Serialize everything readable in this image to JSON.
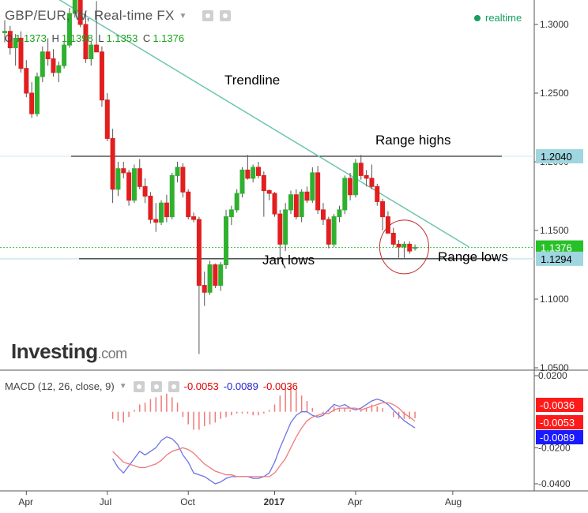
{
  "header": {
    "symbol_title": "GBP/EUR, W, Real-time FX",
    "ohlc": {
      "o_label": "O",
      "o": "1.1373",
      "h_label": "H",
      "h": "1.1398",
      "l_label": "L",
      "l": "1.1353",
      "c_label": "C",
      "c": "1.1376"
    },
    "realtime_label": "realtime"
  },
  "annotations": {
    "trendline": "Trendline",
    "range_highs": "Range highs",
    "jan_lows": "Jan lows",
    "range_lows": "Range lows"
  },
  "logo": {
    "main": "Investing",
    "suffix": ".com"
  },
  "macd_panel": {
    "label": "MACD (12, 26, close, 9)",
    "v1": "-0.0053",
    "v2": "-0.0089",
    "v3": "-0.0036"
  },
  "colors": {
    "up": "#2fb12f",
    "down": "#e21e1e",
    "trendline": "#6fc4b0",
    "macd_line": "#6c74e6",
    "signal_line": "#ef7a7a",
    "histogram": "#ef7a7a"
  },
  "chart_data": [
    {
      "type": "candlestick",
      "title": "GBP/EUR, W, Real-time FX",
      "x_ticks": [
        "Apr",
        "Jul",
        "Oct",
        "2017",
        "Apr",
        "Aug"
      ],
      "y_ticks": [
        "1.3000",
        "1.2500",
        "1.2000",
        "1.1500",
        "1.1000",
        "1.0500"
      ],
      "ylim": [
        1.03,
        1.32
      ],
      "price_labels": [
        {
          "value": 1.204,
          "text": "1.2040"
        },
        {
          "value": 1.1376,
          "text": "1.1376"
        },
        {
          "value": 1.1294,
          "text": "1.1294"
        }
      ],
      "levels": {
        "range_high": 1.204,
        "range_low": 1.1294,
        "current": 1.1376
      },
      "trendline": {
        "start": [
          0,
          1.342
        ],
        "end": [
          86,
          1.138
        ]
      },
      "candles": [
        [
          1.294,
          1.303,
          1.287,
          1.295
        ],
        [
          1.295,
          1.299,
          1.278,
          1.283
        ],
        [
          1.283,
          1.293,
          1.27,
          1.29
        ],
        [
          1.29,
          1.295,
          1.265,
          1.268
        ],
        [
          1.268,
          1.274,
          1.247,
          1.25
        ],
        [
          1.25,
          1.258,
          1.232,
          1.235
        ],
        [
          1.235,
          1.265,
          1.233,
          1.262
        ],
        [
          1.262,
          1.284,
          1.258,
          1.28
        ],
        [
          1.28,
          1.29,
          1.27,
          1.275
        ],
        [
          1.275,
          1.282,
          1.262,
          1.265
        ],
        [
          1.265,
          1.273,
          1.258,
          1.27
        ],
        [
          1.27,
          1.288,
          1.268,
          1.285
        ],
        [
          1.285,
          1.312,
          1.283,
          1.308
        ],
        [
          1.308,
          1.326,
          1.305,
          1.32
        ],
        [
          1.32,
          1.33,
          1.298,
          1.3
        ],
        [
          1.3,
          1.308,
          1.272,
          1.275
        ],
        [
          1.275,
          1.288,
          1.27,
          1.285
        ],
        [
          1.285,
          1.317,
          1.28,
          1.28
        ],
        [
          1.28,
          1.284,
          1.24,
          1.245
        ],
        [
          1.245,
          1.25,
          1.215,
          1.217
        ],
        [
          1.217,
          1.224,
          1.17,
          1.18
        ],
        [
          1.18,
          1.2,
          1.175,
          1.195
        ],
        [
          1.195,
          1.2,
          1.188,
          1.192
        ],
        [
          1.192,
          1.194,
          1.168,
          1.172
        ],
        [
          1.172,
          1.198,
          1.17,
          1.195
        ],
        [
          1.195,
          1.202,
          1.18,
          1.182
        ],
        [
          1.182,
          1.188,
          1.17,
          1.175
        ],
        [
          1.175,
          1.178,
          1.155,
          1.158
        ],
        [
          1.158,
          1.17,
          1.149,
          1.156
        ],
        [
          1.156,
          1.172,
          1.154,
          1.17
        ],
        [
          1.17,
          1.176,
          1.156,
          1.16
        ],
        [
          1.16,
          1.192,
          1.158,
          1.19
        ],
        [
          1.19,
          1.2,
          1.185,
          1.196
        ],
        [
          1.196,
          1.199,
          1.174,
          1.178
        ],
        [
          1.178,
          1.18,
          1.158,
          1.16
        ],
        [
          1.16,
          1.163,
          1.156,
          1.158
        ],
        [
          1.158,
          1.16,
          1.06,
          1.11
        ],
        [
          1.11,
          1.12,
          1.095,
          1.105
        ],
        [
          1.105,
          1.128,
          1.103,
          1.125
        ],
        [
          1.125,
          1.126,
          1.108,
          1.11
        ],
        [
          1.11,
          1.127,
          1.106,
          1.125
        ],
        [
          1.125,
          1.165,
          1.122,
          1.16
        ],
        [
          1.16,
          1.168,
          1.154,
          1.165
        ],
        [
          1.165,
          1.18,
          1.163,
          1.177
        ],
        [
          1.177,
          1.196,
          1.174,
          1.194
        ],
        [
          1.194,
          1.205,
          1.187,
          1.188
        ],
        [
          1.188,
          1.198,
          1.185,
          1.196
        ],
        [
          1.196,
          1.2,
          1.188,
          1.19
        ],
        [
          1.19,
          1.193,
          1.16,
          1.179
        ],
        [
          1.179,
          1.18,
          1.172,
          1.177
        ],
        [
          1.177,
          1.178,
          1.16,
          1.162
        ],
        [
          1.162,
          1.165,
          1.13,
          1.14
        ],
        [
          1.14,
          1.17,
          1.135,
          1.165
        ],
        [
          1.165,
          1.179,
          1.162,
          1.176
        ],
        [
          1.176,
          1.18,
          1.158,
          1.16
        ],
        [
          1.16,
          1.18,
          1.156,
          1.178
        ],
        [
          1.178,
          1.182,
          1.17,
          1.172
        ],
        [
          1.172,
          1.196,
          1.17,
          1.192
        ],
        [
          1.192,
          1.197,
          1.162,
          1.165
        ],
        [
          1.165,
          1.17,
          1.154,
          1.158
        ],
        [
          1.158,
          1.16,
          1.137,
          1.14
        ],
        [
          1.14,
          1.162,
          1.138,
          1.16
        ],
        [
          1.16,
          1.168,
          1.156,
          1.165
        ],
        [
          1.165,
          1.19,
          1.162,
          1.188
        ],
        [
          1.188,
          1.192,
          1.172,
          1.176
        ],
        [
          1.176,
          1.202,
          1.174,
          1.199
        ],
        [
          1.199,
          1.205,
          1.187,
          1.19
        ],
        [
          1.19,
          1.194,
          1.182,
          1.188
        ],
        [
          1.188,
          1.198,
          1.18,
          1.182
        ],
        [
          1.182,
          1.184,
          1.168,
          1.171
        ],
        [
          1.171,
          1.173,
          1.15,
          1.16
        ],
        [
          1.16,
          1.164,
          1.15,
          1.148
        ],
        [
          1.148,
          1.152,
          1.138,
          1.14
        ],
        [
          1.14,
          1.143,
          1.13,
          1.138
        ],
        [
          1.138,
          1.142,
          1.13,
          1.14
        ],
        [
          1.14,
          1.142,
          1.133,
          1.135
        ],
        [
          1.1373,
          1.1398,
          1.1353,
          1.1376
        ]
      ]
    },
    {
      "type": "line",
      "title": "MACD (12, 26, close, 9)",
      "x_ticks": [
        "Apr",
        "Jul",
        "Oct",
        "2017",
        "Apr",
        "Aug"
      ],
      "y_ticks": [
        "0.0200",
        "-0.0200",
        "-0.0400"
      ],
      "ylim": [
        -0.045,
        0.022
      ],
      "value_labels": [
        {
          "value": -0.0036,
          "text": "-0.0036"
        },
        {
          "value": -0.0053,
          "text": "-0.0053"
        },
        {
          "value": -0.0089,
          "text": "-0.0089"
        }
      ],
      "series": [
        {
          "name": "MACD",
          "values": [
            -0.026,
            -0.031,
            -0.034,
            -0.03,
            -0.026,
            -0.022,
            -0.024,
            -0.022,
            -0.02,
            -0.016,
            -0.014,
            -0.015,
            -0.018,
            -0.024,
            -0.028,
            -0.034,
            -0.035,
            -0.036,
            -0.038,
            -0.04,
            -0.039,
            -0.037,
            -0.036,
            -0.036,
            -0.036,
            -0.036,
            -0.037,
            -0.037,
            -0.036,
            -0.034,
            -0.028,
            -0.02,
            -0.013,
            -0.006,
            -0.002,
            0.0,
            0.0,
            -0.002,
            -0.003,
            -0.002,
            0.001,
            0.004,
            0.003,
            0.004,
            0.002,
            0.001,
            0.002,
            0.004,
            0.006,
            0.007,
            0.006,
            0.004,
            0.001,
            -0.002,
            -0.005,
            -0.007,
            -0.009
          ]
        },
        {
          "name": "Signal",
          "values": [
            -0.022,
            -0.025,
            -0.028,
            -0.029,
            -0.03,
            -0.031,
            -0.031,
            -0.03,
            -0.029,
            -0.027,
            -0.024,
            -0.022,
            -0.021,
            -0.02,
            -0.021,
            -0.023,
            -0.026,
            -0.029,
            -0.031,
            -0.033,
            -0.034,
            -0.035,
            -0.035,
            -0.036,
            -0.036,
            -0.036,
            -0.036,
            -0.036,
            -0.036,
            -0.036,
            -0.034,
            -0.03,
            -0.026,
            -0.02,
            -0.014,
            -0.009,
            -0.005,
            -0.003,
            -0.002,
            -0.001,
            -0.001,
            0.001,
            0.002,
            0.002,
            0.002,
            0.002,
            0.001,
            0.002,
            0.003,
            0.004,
            0.005,
            0.005,
            0.004,
            0.002,
            -0.001,
            -0.003,
            -0.0053
          ]
        },
        {
          "name": "Histogram",
          "values": [
            -0.004,
            -0.005,
            -0.006,
            -0.003,
            0.001,
            0.004,
            0.005,
            0.007,
            0.008,
            0.009,
            0.01,
            0.008,
            0.005,
            -0.003,
            -0.007,
            -0.01,
            -0.01,
            -0.008,
            -0.007,
            -0.006,
            -0.004,
            -0.003,
            -0.002,
            -0.001,
            -0.001,
            -0.001,
            -0.002,
            -0.002,
            -0.001,
            0.001,
            0.004,
            0.009,
            0.013,
            0.014,
            0.012,
            0.009,
            0.006,
            0.002,
            0.0,
            -0.001,
            0.001,
            0.003,
            0.002,
            0.002,
            0.001,
            0.0,
            0.001,
            0.002,
            0.004,
            0.003,
            0.002,
            0.0,
            -0.003,
            -0.004,
            -0.004,
            -0.004,
            -0.0036
          ]
        }
      ]
    }
  ]
}
